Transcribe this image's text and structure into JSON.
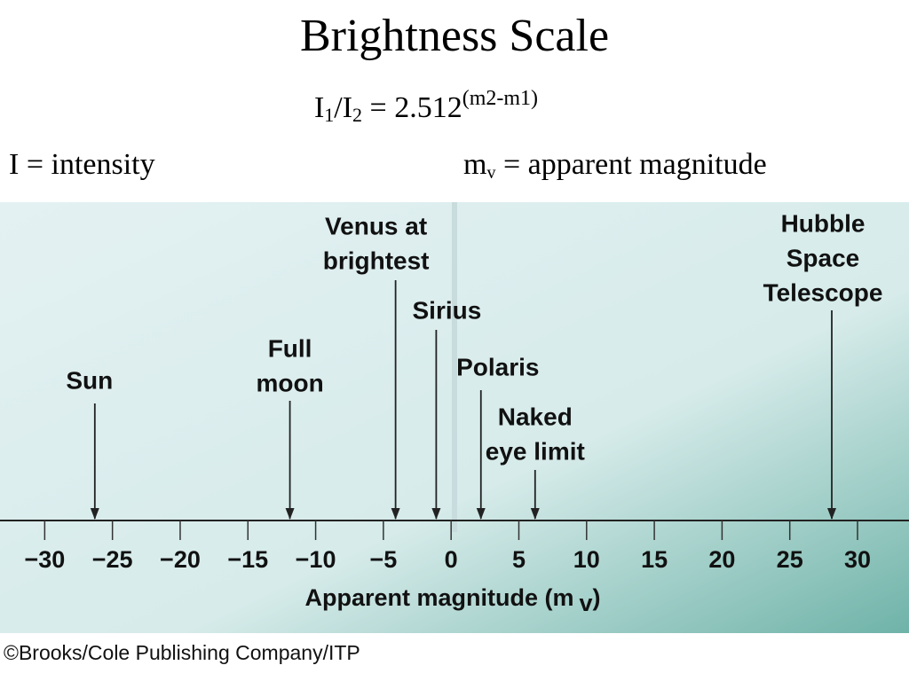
{
  "header": {
    "title": "Brightness Scale",
    "formula": [
      "I",
      "1",
      "/I",
      "2",
      " = 2.512",
      "(m2-m1)"
    ],
    "definitions": {
      "left": "I = intensity",
      "right": [
        "m",
        "v",
        " = apparent magnitude"
      ]
    }
  },
  "chart_data": {
    "type": "number-line",
    "xlabel": [
      "Apparent magnitude (m",
      "v",
      ")"
    ],
    "xlim": [
      -33.3,
      33.8
    ],
    "xticks": [
      {
        "value": -30,
        "label": "−30"
      },
      {
        "value": -25,
        "label": "−25"
      },
      {
        "value": -20,
        "label": "−20"
      },
      {
        "value": -15,
        "label": "−15"
      },
      {
        "value": -10,
        "label": "−10"
      },
      {
        "value": -5,
        "label": "−5"
      },
      0,
      5,
      10,
      15,
      20,
      25,
      30
    ],
    "points": [
      {
        "label": [
          "Sun"
        ],
        "value": -26.3
      },
      {
        "label": [
          "Full",
          "moon"
        ],
        "value": -11.9
      },
      {
        "label": [
          "Venus at",
          "brightest"
        ],
        "value": -4.1
      },
      {
        "label": [
          "Sirius"
        ],
        "value": -1.1
      },
      {
        "label": [
          "Polaris"
        ],
        "value": 2.2
      },
      {
        "label": [
          "Naked",
          "eye limit"
        ],
        "value": 6.2
      },
      {
        "label": [
          "Hubble",
          "Space",
          "Telescope"
        ],
        "value": 28.1
      }
    ]
  },
  "credit": "©Brooks/Cole Publishing Company/ITP"
}
